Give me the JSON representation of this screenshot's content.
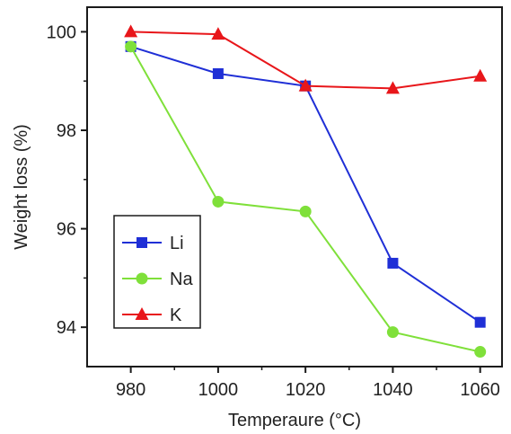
{
  "chart_data": {
    "type": "line",
    "title": "",
    "xlabel": "Temperaure (°C)",
    "ylabel": "Weight loss (%)",
    "x": [
      980,
      1000,
      1020,
      1040,
      1060
    ],
    "xlim": [
      970,
      1065
    ],
    "ylim": [
      93.2,
      100.5
    ],
    "xticks": [
      "980",
      "1000",
      "1020",
      "1040",
      "1060"
    ],
    "yticks": [
      "94",
      "96",
      "98",
      "100"
    ],
    "grid": false,
    "legend_position": "bottom-left",
    "series": [
      {
        "name": "Li",
        "marker": "square",
        "color": "#1f2fd6",
        "values": [
          99.7,
          99.15,
          98.9,
          95.3,
          94.1
        ]
      },
      {
        "name": "Na",
        "marker": "circle",
        "color": "#7fe03a",
        "values": [
          99.7,
          96.55,
          96.35,
          93.9,
          93.5
        ]
      },
      {
        "name": "K",
        "marker": "triangle",
        "color": "#e8161a",
        "values": [
          100.0,
          99.95,
          98.9,
          98.85,
          99.1
        ]
      }
    ]
  }
}
